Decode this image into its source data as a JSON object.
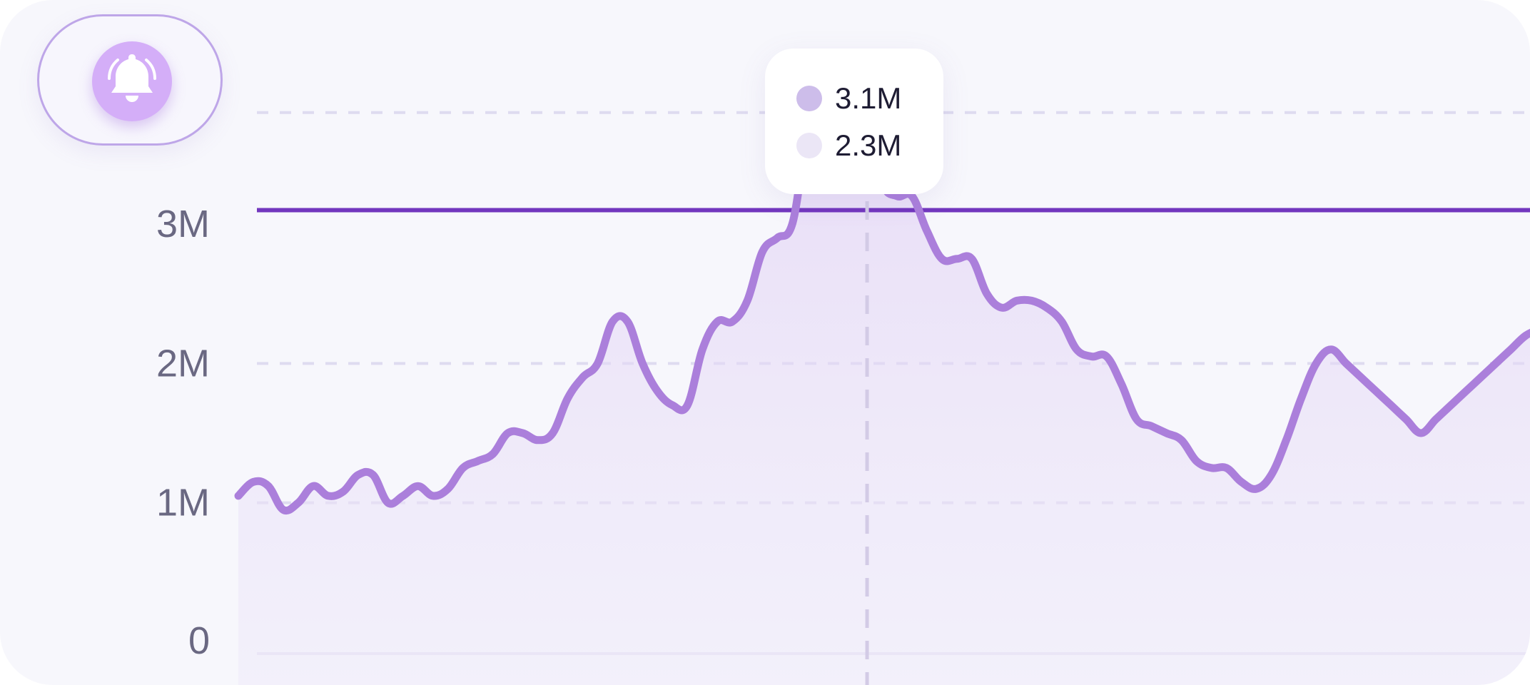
{
  "alert_button": {
    "icon": "bell-ring-icon",
    "accent_color": "#d4aef8",
    "border_color": "#bea6e8"
  },
  "tooltip": {
    "rows": [
      {
        "value": "3.1M",
        "color": "#cdbdea"
      },
      {
        "value": "2.3M",
        "color": "#ebe6f6"
      }
    ]
  },
  "colors": {
    "line": "#ab7fdb",
    "threshold": "#7236be",
    "grid": "#dedbf0",
    "cursor": "#d3cbe6",
    "marker": "#a87cdb"
  },
  "chart_data": {
    "type": "area",
    "title": "",
    "xlabel": "",
    "ylabel": "",
    "ylim": [
      0,
      4
    ],
    "yticks": [
      {
        "value": 0,
        "label": "0"
      },
      {
        "value": 1,
        "label": "1M"
      },
      {
        "value": 2,
        "label": "2M"
      },
      {
        "value": 3,
        "label": "3M"
      }
    ],
    "grid": true,
    "threshold": {
      "value": 3.1
    },
    "hover": {
      "x": 42,
      "value": 3.8
    },
    "series": [
      {
        "unit": "M",
        "x": [
          0,
          1,
          2,
          3,
          4,
          5,
          6,
          7,
          8,
          9,
          10,
          11,
          12,
          13,
          14,
          15,
          16,
          17,
          18,
          19,
          20,
          21,
          22,
          23,
          24,
          25,
          26,
          27,
          28,
          29,
          30,
          31,
          32,
          33,
          34,
          35,
          36,
          37,
          38,
          39,
          40,
          41,
          42,
          43,
          44,
          45,
          46,
          47,
          48,
          49,
          50,
          51,
          52,
          53,
          54,
          55,
          56,
          57,
          58,
          59,
          60,
          61,
          62,
          63,
          64,
          65,
          66,
          67,
          68,
          69,
          70,
          71,
          72,
          73,
          74,
          75,
          76,
          77,
          78,
          79,
          80,
          81,
          82,
          83,
          84,
          85,
          86,
          87,
          88
        ],
        "values": [
          1.05,
          1.15,
          1.12,
          0.95,
          1.0,
          1.12,
          1.05,
          1.08,
          1.2,
          1.2,
          1.0,
          1.05,
          1.12,
          1.05,
          1.1,
          1.25,
          1.3,
          1.35,
          1.5,
          1.5,
          1.45,
          1.5,
          1.75,
          1.9,
          2.0,
          2.3,
          2.3,
          2.0,
          1.8,
          1.7,
          1.7,
          2.1,
          2.3,
          2.3,
          2.45,
          2.8,
          2.9,
          3.0,
          3.6,
          3.7,
          3.75,
          3.8,
          3.8,
          3.3,
          3.2,
          3.2,
          2.95,
          2.75,
          2.75,
          2.75,
          2.5,
          2.4,
          2.45,
          2.45,
          2.4,
          2.3,
          2.1,
          2.05,
          2.05,
          1.85,
          1.6,
          1.55,
          1.5,
          1.45,
          1.3,
          1.25,
          1.25,
          1.15,
          1.1,
          1.2,
          1.45,
          1.75,
          2.0,
          2.1,
          2.0,
          1.9,
          1.8,
          1.7,
          1.6,
          1.5,
          1.6,
          1.7,
          1.8,
          1.9,
          2.0,
          2.1,
          2.2,
          2.25,
          2.3
        ]
      }
    ]
  }
}
